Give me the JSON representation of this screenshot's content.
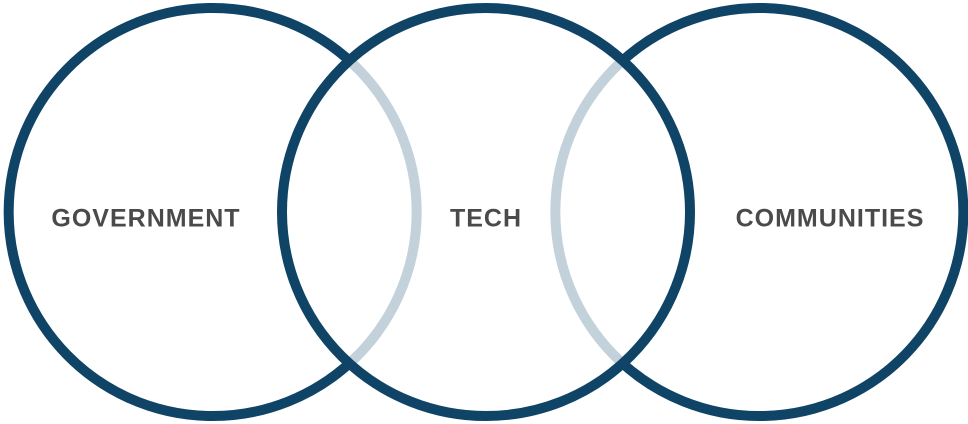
{
  "diagram": {
    "circles": [
      {
        "id": "government",
        "label": "GOVERNMENT"
      },
      {
        "id": "tech",
        "label": "TECH"
      },
      {
        "id": "communities",
        "label": "COMMUNITIES"
      }
    ],
    "colors": {
      "ring": "#0f4466",
      "overlap_arc": "#c3d1db",
      "label": "#4a4a4a",
      "background": "#ffffff"
    }
  }
}
